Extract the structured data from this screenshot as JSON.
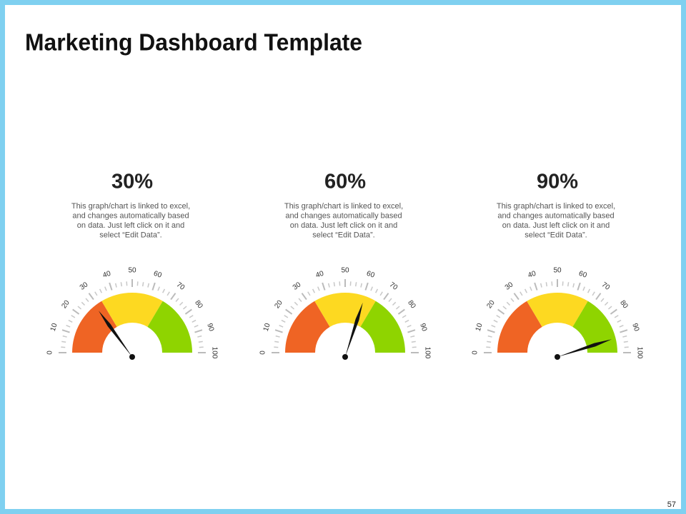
{
  "title": "Marketing Dashboard Template",
  "page_number": "57",
  "chart_data": [
    {
      "type": "gauge",
      "value": 30,
      "value_label": "30%",
      "description": [
        "This graph/chart is linked to excel,",
        "and changes automatically based",
        "on data. Just left click on it and",
        "select “Edit Data”."
      ],
      "xlim": [
        0,
        100
      ],
      "xticks": [
        0,
        10,
        20,
        30,
        40,
        50,
        60,
        70,
        80,
        90,
        100
      ],
      "minor_ticks": [
        2.5,
        5,
        7.5,
        12.5,
        15,
        17.5,
        22.5,
        25,
        27.5,
        32.5,
        35,
        37.5,
        42.5,
        45,
        47.5,
        52.5,
        55,
        57.5,
        62.5,
        65,
        67.5,
        72.5,
        75,
        77.5,
        82.5,
        85,
        87.5,
        92.5,
        95,
        97.5
      ],
      "bands": [
        {
          "from": 0,
          "to": 33,
          "color": "#ef6424"
        },
        {
          "from": 33,
          "to": 67,
          "color": "#fdd921"
        },
        {
          "from": 67,
          "to": 100,
          "color": "#8fd400"
        }
      ]
    },
    {
      "type": "gauge",
      "value": 60,
      "value_label": "60%",
      "description": [
        "This graph/chart is linked to excel,",
        "and changes automatically based",
        "on data. Just left click on it and",
        "select “Edit Data”."
      ],
      "xlim": [
        0,
        100
      ],
      "xticks": [
        0,
        10,
        20,
        30,
        40,
        50,
        60,
        70,
        80,
        90,
        100
      ],
      "minor_ticks": [
        2.5,
        5,
        7.5,
        12.5,
        15,
        17.5,
        22.5,
        25,
        27.5,
        32.5,
        35,
        37.5,
        42.5,
        45,
        47.5,
        52.5,
        55,
        57.5,
        62.5,
        65,
        67.5,
        72.5,
        75,
        77.5,
        82.5,
        85,
        87.5,
        92.5,
        95,
        97.5
      ],
      "bands": [
        {
          "from": 0,
          "to": 33,
          "color": "#ef6424"
        },
        {
          "from": 33,
          "to": 67,
          "color": "#fdd921"
        },
        {
          "from": 67,
          "to": 100,
          "color": "#8fd400"
        }
      ]
    },
    {
      "type": "gauge",
      "value": 90,
      "value_label": "90%",
      "description": [
        "This graph/chart is linked to excel,",
        "and changes automatically based",
        "on data. Just left click on it and",
        "select “Edit Data”."
      ],
      "xlim": [
        0,
        100
      ],
      "xticks": [
        0,
        10,
        20,
        30,
        40,
        50,
        60,
        70,
        80,
        90,
        100
      ],
      "minor_ticks": [
        2.5,
        5,
        7.5,
        12.5,
        15,
        17.5,
        22.5,
        25,
        27.5,
        32.5,
        35,
        37.5,
        42.5,
        45,
        47.5,
        52.5,
        55,
        57.5,
        62.5,
        65,
        67.5,
        72.5,
        75,
        77.5,
        82.5,
        85,
        87.5,
        92.5,
        95,
        97.5
      ],
      "bands": [
        {
          "from": 0,
          "to": 33,
          "color": "#ef6424"
        },
        {
          "from": 33,
          "to": 67,
          "color": "#fdd921"
        },
        {
          "from": 67,
          "to": 100,
          "color": "#8fd400"
        }
      ]
    }
  ]
}
